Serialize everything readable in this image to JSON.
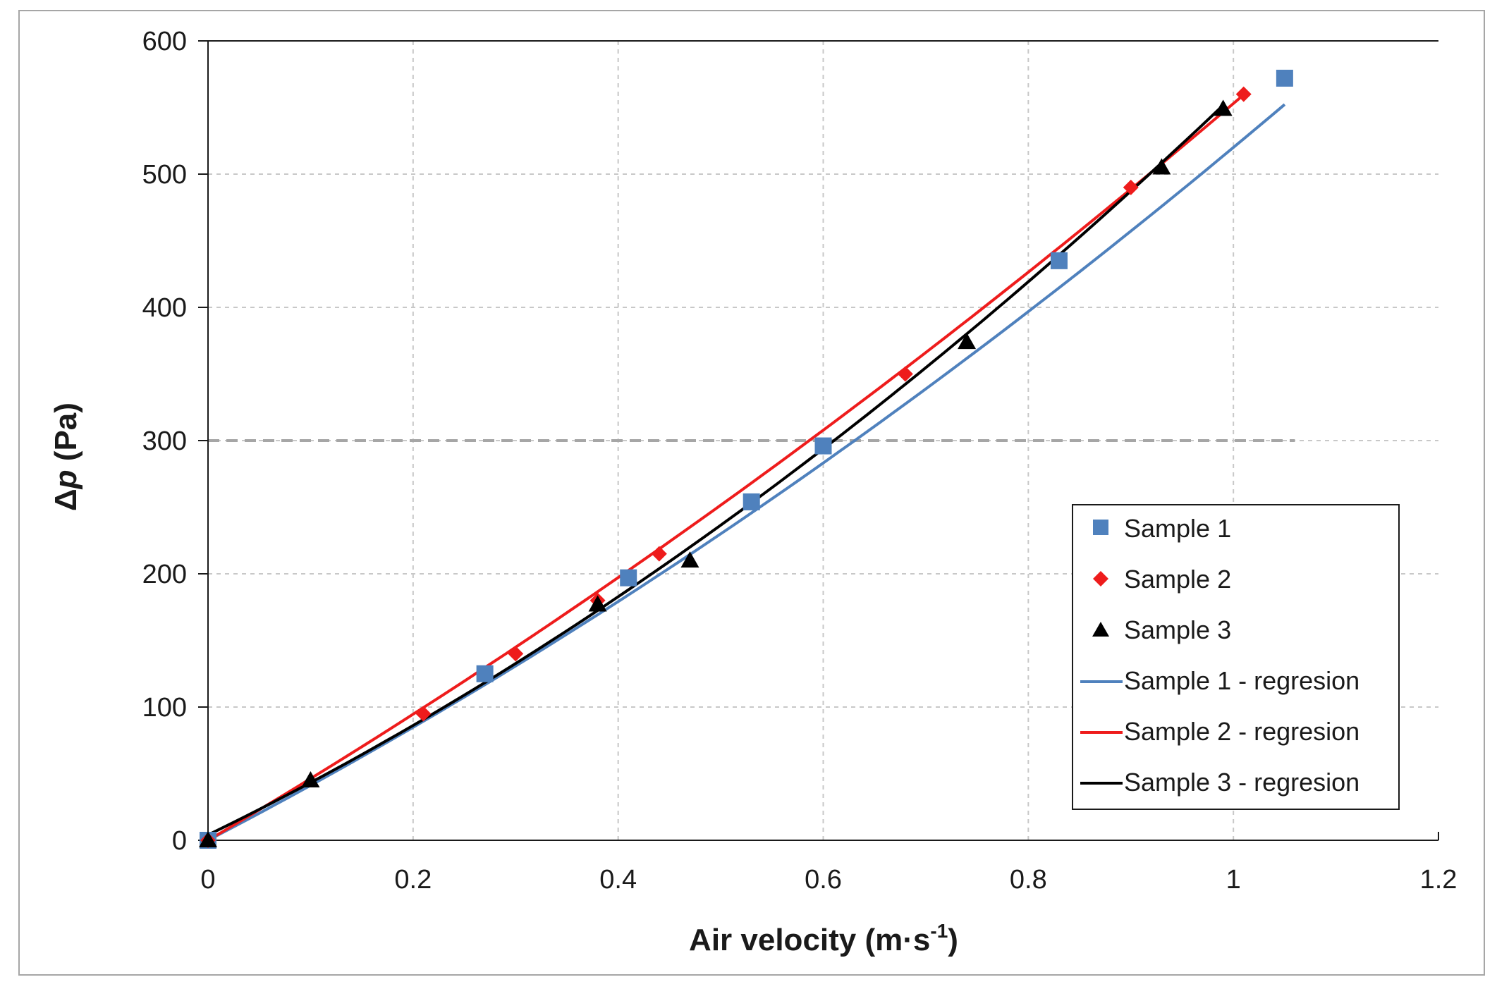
{
  "chart_data": {
    "type": "scatter",
    "title": "",
    "xlabel": "Air velocity (m·s",
    "xlabel_sup": "-1",
    "xlabel_end": ")",
    "ylabel_prefix": "Δ",
    "ylabel_var": "p",
    "ylabel_unit": " (Pa)",
    "xlim": [
      0,
      1.2
    ],
    "ylim": [
      0,
      600
    ],
    "xticks": [
      0,
      0.2,
      0.4,
      0.6,
      0.8,
      1,
      1.2
    ],
    "xtick_labels": [
      "0",
      "0.2",
      "0.4",
      "0.6",
      "0.8",
      "1",
      "1.2"
    ],
    "yticks": [
      0,
      100,
      200,
      300,
      400,
      500,
      600
    ],
    "ytick_labels": [
      "0",
      "100",
      "200",
      "300",
      "400",
      "500",
      "600"
    ],
    "grid": true,
    "reference_line": {
      "y": 300,
      "style": "dashed"
    },
    "legend_position": "bottom-right",
    "series": [
      {
        "name": "Sample 1",
        "marker": "square",
        "color": "#4f81bd",
        "x": [
          0,
          0.27,
          0.41,
          0.53,
          0.6,
          0.83,
          1.05
        ],
        "y": [
          0,
          125,
          197,
          254,
          296,
          435,
          572
        ]
      },
      {
        "name": "Sample 2",
        "marker": "diamond",
        "color": "#ee1c1c",
        "x": [
          0,
          0.21,
          0.3,
          0.38,
          0.44,
          0.68,
          0.9,
          1.01
        ],
        "y": [
          0,
          95,
          140,
          180,
          215,
          350,
          490,
          560
        ]
      },
      {
        "name": "Sample 3",
        "marker": "triangle",
        "color": "#000000",
        "x": [
          0,
          0.1,
          0.38,
          0.47,
          0.74,
          0.93,
          0.99
        ],
        "y": [
          0,
          45,
          177,
          210,
          374,
          505,
          549
        ]
      }
    ],
    "regressions": [
      {
        "name": "Sample 1 - regresion",
        "color": "#4f81bd",
        "a": 120,
        "b": 400,
        "c": 0,
        "x_range": [
          0,
          1.05
        ]
      },
      {
        "name": "Sample 2 - regresion",
        "color": "#ee1c1c",
        "a": 100,
        "b": 453,
        "c": 0,
        "x_range": [
          0,
          1.01
        ]
      },
      {
        "name": "Sample 3 - regresion",
        "color": "#000000",
        "a": 180,
        "b": 375,
        "c": 4,
        "x_range": [
          0,
          0.99
        ]
      }
    ]
  }
}
